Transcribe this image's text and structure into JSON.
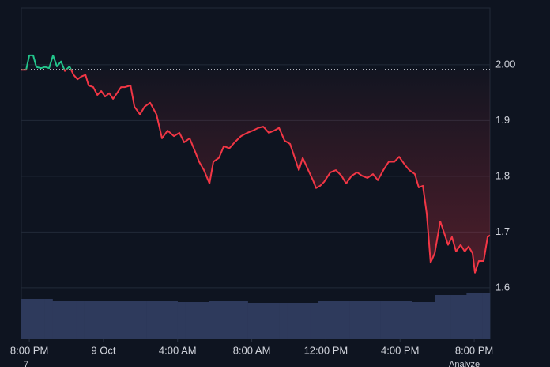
{
  "chart_data": {
    "type": "line",
    "xlim": [
      -0.43,
      24.85
    ],
    "ylim": [
      1.509,
      2.102
    ],
    "xticks": [
      {
        "value": 0,
        "label": "8:00 PM"
      },
      {
        "value": 4,
        "label": "9 Oct"
      },
      {
        "value": 8,
        "label": "4:00 AM"
      },
      {
        "value": 12,
        "label": "8:00 AM"
      },
      {
        "value": 16,
        "label": "12:00 PM"
      },
      {
        "value": 20,
        "label": "4:00 PM"
      },
      {
        "value": 24,
        "label": "8:00 PM"
      }
    ],
    "yticks": [
      {
        "value": 2,
        "label": "2.00"
      },
      1.9,
      1.8,
      1.7,
      1.6
    ],
    "grid": true,
    "baseline": 1.992,
    "up_color": "#22c58b",
    "x": [
      -0.43,
      -0.17,
      0,
      0.21,
      0.38,
      0.64,
      0.85,
      1.07,
      1.28,
      1.49,
      1.71,
      1.92,
      2.17,
      2.39,
      2.6,
      2.81,
      3.03,
      3.2,
      3.45,
      3.67,
      3.88,
      4.09,
      4.31,
      4.52,
      4.73,
      4.95,
      5.16,
      5.46,
      5.67,
      5.97,
      6.22,
      6.52,
      6.86,
      7.16,
      7.46,
      7.8,
      8.1,
      8.35,
      8.65,
      8.95,
      9.16,
      9.42,
      9.72,
      9.93,
      10.23,
      10.49,
      10.79,
      11.08,
      11.42,
      11.76,
      12.06,
      12.36,
      12.62,
      12.92,
      13.21,
      13.47,
      13.77,
      14.07,
      14.32,
      14.54,
      14.75,
      15.05,
      15.3,
      15.47,
      15.69,
      15.9,
      16.24,
      16.54,
      16.84,
      17.09,
      17.39,
      17.69,
      17.95,
      18.24,
      18.54,
      18.8,
      19.1,
      19.39,
      19.69,
      19.95,
      20.25,
      20.5,
      20.8,
      21.01,
      21.23,
      21.44,
      21.65,
      21.87,
      22.17,
      22.38,
      22.59,
      22.8,
      23.02,
      23.27,
      23.49,
      23.7,
      23.91,
      24.04,
      24.25,
      24.51,
      24.72,
      24.85
    ],
    "series": [
      {
        "color": "#f23645",
        "values": [
          1.991,
          1.991,
          2.017,
          2.017,
          1.996,
          1.994,
          1.996,
          1.994,
          2.017,
          1.997,
          2.006,
          1.989,
          1.997,
          1.982,
          1.974,
          1.979,
          1.982,
          1.963,
          1.96,
          1.946,
          1.953,
          1.943,
          1.949,
          1.939,
          1.949,
          1.96,
          1.96,
          1.963,
          1.925,
          1.911,
          1.925,
          1.932,
          1.911,
          1.868,
          1.882,
          1.872,
          1.878,
          1.861,
          1.868,
          1.844,
          1.826,
          1.811,
          1.787,
          1.826,
          1.833,
          1.854,
          1.85,
          1.861,
          1.872,
          1.878,
          1.882,
          1.887,
          1.889,
          1.878,
          1.882,
          1.887,
          1.864,
          1.858,
          1.833,
          1.811,
          1.833,
          1.811,
          1.793,
          1.779,
          1.783,
          1.79,
          1.807,
          1.811,
          1.801,
          1.787,
          1.801,
          1.807,
          1.801,
          1.797,
          1.804,
          1.793,
          1.811,
          1.826,
          1.826,
          1.835,
          1.821,
          1.811,
          1.804,
          1.78,
          1.783,
          1.733,
          1.645,
          1.662,
          1.719,
          1.698,
          1.677,
          1.691,
          1.665,
          1.677,
          1.665,
          1.674,
          1.662,
          1.627,
          1.648,
          1.648,
          1.691,
          1.694
        ]
      }
    ],
    "volume": {
      "color": "#2e3a5c",
      "ylim": [
        0,
        418
      ],
      "values": [
        50,
        50,
        50,
        50,
        48,
        48,
        48,
        48,
        48,
        48,
        48,
        48,
        48,
        48,
        48,
        48,
        48,
        48,
        48,
        48,
        46,
        46,
        46,
        46,
        48,
        48,
        48,
        48,
        48,
        45,
        45,
        45,
        45,
        45,
        45,
        45,
        45,
        45,
        48,
        48,
        48,
        48,
        48,
        48,
        48,
        48,
        48,
        48,
        48,
        48,
        46,
        46,
        46,
        55,
        55,
        55,
        55,
        58,
        58,
        58
      ]
    },
    "footer_left": "7",
    "footer_right": "Analyze"
  }
}
